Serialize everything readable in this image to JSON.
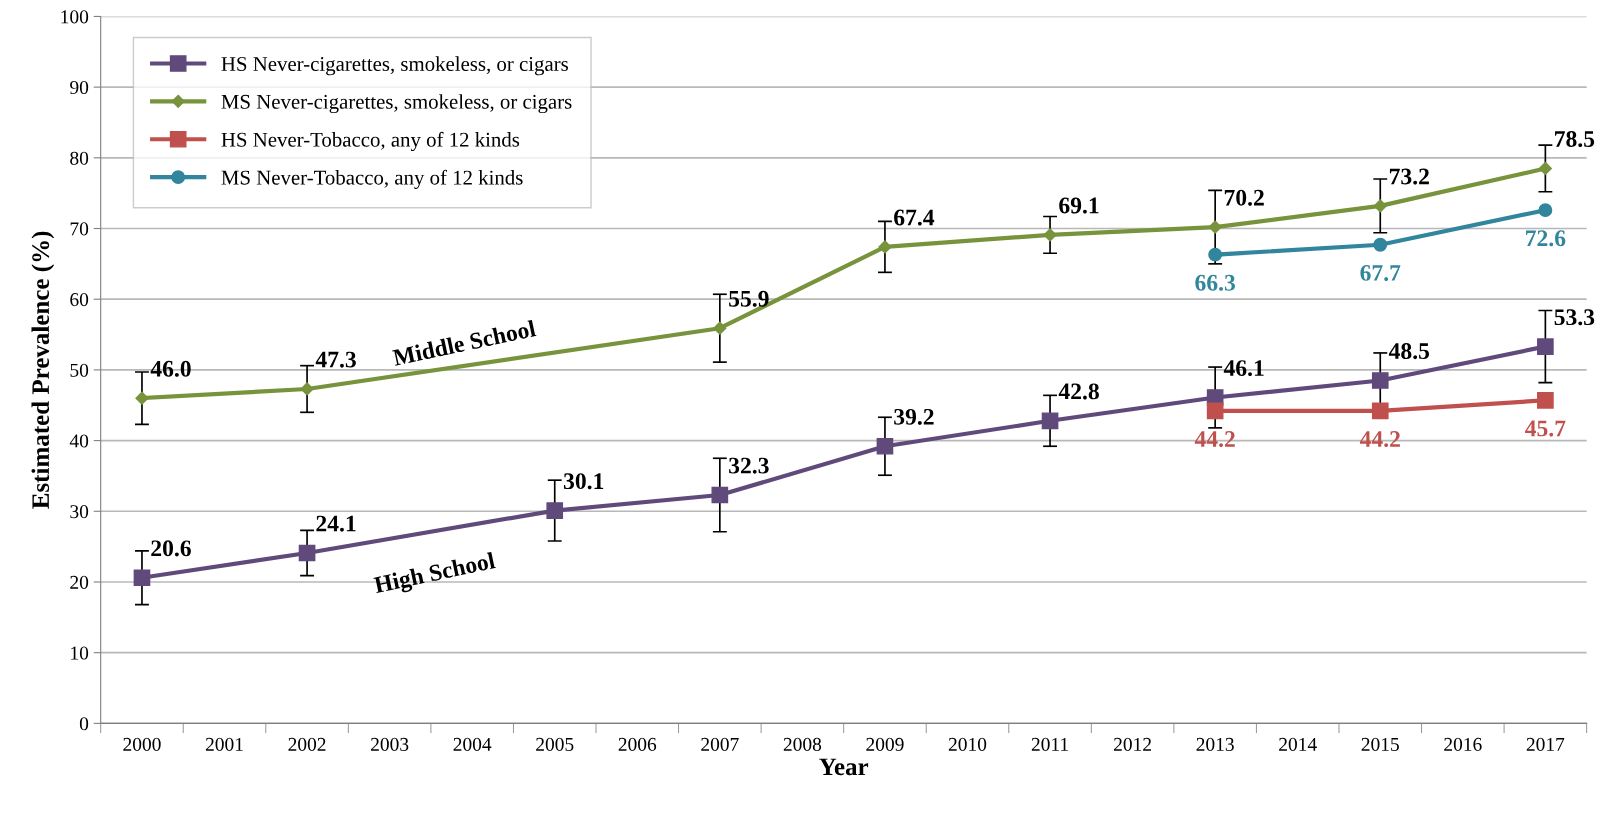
{
  "chart_data": {
    "type": "line",
    "ylabel": "Estimated Prevalence (%)",
    "xlabel": "Year",
    "categories": [
      "2000",
      "2001",
      "2002",
      "2003",
      "2004",
      "2005",
      "2006",
      "2007",
      "2008",
      "2009",
      "2010",
      "2011",
      "2012",
      "2013",
      "2014",
      "2015",
      "2016",
      "2017"
    ],
    "series": [
      {
        "name": "HS Never-cigarettes, smokeless, or cigars",
        "color": "#604a7b",
        "marker": "square",
        "values": [
          20.6,
          null,
          24.1,
          null,
          null,
          30.1,
          null,
          32.3,
          null,
          39.2,
          null,
          42.8,
          null,
          46.1,
          null,
          48.5,
          null,
          53.3
        ],
        "value_labels": [
          "20.6",
          null,
          "24.1",
          null,
          null,
          "30.1",
          null,
          "32.3",
          null,
          "39.2",
          null,
          "42.8",
          null,
          "46.1",
          null,
          "48.5",
          null,
          "53.3"
        ],
        "errors": [
          3.8,
          null,
          3.2,
          null,
          null,
          4.3,
          null,
          5.2,
          null,
          4.1,
          null,
          3.6,
          null,
          4.3,
          null,
          3.9,
          null,
          5.1
        ]
      },
      {
        "name": "MS Never-cigarettes, smokeless, or cigars",
        "color": "#77933c",
        "marker": "diamond",
        "values": [
          46.0,
          null,
          47.3,
          null,
          null,
          null,
          null,
          55.9,
          null,
          67.4,
          null,
          69.1,
          null,
          70.2,
          null,
          73.2,
          null,
          78.5
        ],
        "value_labels": [
          "46.0",
          null,
          "47.3",
          null,
          null,
          null,
          null,
          "55.9",
          null,
          "67.4",
          null,
          "69.1",
          null,
          "70.2",
          null,
          "73.2",
          null,
          "78.5"
        ],
        "errors": [
          3.7,
          null,
          3.3,
          null,
          null,
          null,
          null,
          4.8,
          null,
          3.6,
          null,
          2.6,
          null,
          5.2,
          null,
          3.8,
          null,
          3.3
        ]
      },
      {
        "name": "HS Never-Tobacco, any of 12 kinds",
        "color": "#c0504d",
        "marker": "square",
        "values": [
          null,
          null,
          null,
          null,
          null,
          null,
          null,
          null,
          null,
          null,
          null,
          null,
          null,
          44.2,
          null,
          44.2,
          null,
          45.7
        ],
        "value_labels": [
          null,
          null,
          null,
          null,
          null,
          null,
          null,
          null,
          null,
          null,
          null,
          null,
          null,
          "44.2",
          null,
          "44.2",
          null,
          "45.7"
        ]
      },
      {
        "name": "MS Never-Tobacco, any of 12 kinds",
        "color": "#31859c",
        "marker": "circle",
        "values": [
          null,
          null,
          null,
          null,
          null,
          null,
          null,
          null,
          null,
          null,
          null,
          null,
          null,
          66.3,
          null,
          67.7,
          null,
          72.6
        ],
        "value_labels": [
          null,
          null,
          null,
          null,
          null,
          null,
          null,
          null,
          null,
          null,
          null,
          null,
          null,
          "66.3",
          null,
          "67.7",
          null,
          "72.6"
        ]
      }
    ],
    "ylim": [
      0,
      100
    ],
    "yticks": [
      0,
      10,
      20,
      30,
      40,
      50,
      60,
      70,
      80,
      90,
      100
    ],
    "grid": "y",
    "legend": "top left",
    "annotations": [
      "Middle School",
      "High School"
    ]
  }
}
